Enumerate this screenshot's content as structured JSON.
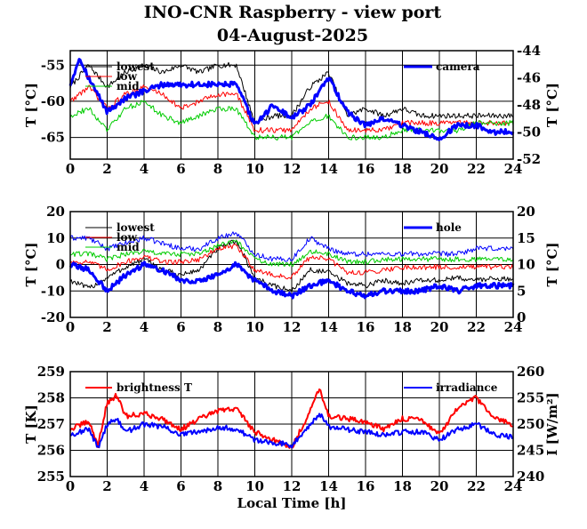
{
  "title": "INO-CNR Raspberry - view port",
  "subtitle": "04-August-2025",
  "xlabel": "Local Time [h]",
  "chart_data": [
    {
      "type": "line",
      "panel": "top",
      "x_ticks": [
        "0",
        "2",
        "4",
        "6",
        "8",
        "10",
        "12",
        "14",
        "16",
        "18",
        "20",
        "22",
        "24"
      ],
      "xlim": [
        0,
        24
      ],
      "left_axis": {
        "label": "T [°C]",
        "ylim": [
          -68,
          -53
        ],
        "ticks": [
          "-55",
          "-60",
          "-65"
        ]
      },
      "right_axis": {
        "label": "T [°C]",
        "ylim": [
          -52,
          -44
        ],
        "ticks": [
          "-44",
          "-46",
          "-48",
          "-50",
          "-52"
        ]
      },
      "legend": [
        "lowest",
        "low",
        "mid",
        "camera"
      ],
      "series": [
        {
          "name": "lowest",
          "axis": "left",
          "color": "#000000",
          "x": [
            0,
            1,
            2,
            3,
            4,
            5,
            6,
            7,
            8,
            9,
            10,
            11,
            12,
            13,
            14,
            15,
            16,
            17,
            18,
            19,
            20,
            21,
            22,
            23,
            24
          ],
          "y": [
            -58,
            -55,
            -58,
            -56,
            -55,
            -56,
            -55,
            -56,
            -55,
            -55,
            -63,
            -62,
            -62,
            -58,
            -56,
            -62,
            -61,
            -62,
            -61,
            -62,
            -62,
            -62,
            -62,
            -62,
            -62
          ]
        },
        {
          "name": "low",
          "axis": "left",
          "color": "#ff0000",
          "x": [
            0,
            1,
            2,
            3,
            4,
            5,
            6,
            7,
            8,
            9,
            10,
            11,
            12,
            13,
            14,
            15,
            16,
            17,
            18,
            19,
            20,
            21,
            22,
            23,
            24
          ],
          "y": [
            -60,
            -58,
            -61,
            -59,
            -58,
            -59,
            -61,
            -60,
            -59,
            -59,
            -64,
            -64,
            -64,
            -61,
            -60,
            -64,
            -64,
            -64,
            -63,
            -63,
            -63,
            -63,
            -63,
            -63,
            -63
          ]
        },
        {
          "name": "mid",
          "axis": "left",
          "color": "#00cc00",
          "x": [
            0,
            1,
            2,
            3,
            4,
            5,
            6,
            7,
            8,
            9,
            10,
            11,
            12,
            13,
            14,
            15,
            16,
            17,
            18,
            19,
            20,
            21,
            22,
            23,
            24
          ],
          "y": [
            -62,
            -61,
            -64,
            -61,
            -60,
            -62,
            -63,
            -62,
            -61,
            -61,
            -65,
            -65,
            -65,
            -63,
            -62,
            -65,
            -65,
            -65,
            -64,
            -64,
            -64,
            -64,
            -63,
            -63,
            -63
          ]
        },
        {
          "name": "camera",
          "axis": "right",
          "color": "#0000ff",
          "x": [
            0,
            0.5,
            1,
            2,
            3,
            4,
            5,
            6,
            7,
            8,
            9,
            10,
            11,
            12,
            13,
            14,
            15,
            16,
            17,
            18,
            19,
            20,
            21,
            22,
            23,
            24
          ],
          "y": [
            -46.5,
            -44.5,
            -46,
            -48.5,
            -47.5,
            -47,
            -46.5,
            -46.5,
            -46.5,
            -46.5,
            -46.5,
            -49.5,
            -48,
            -49,
            -48,
            -46,
            -48.5,
            -49.5,
            -49,
            -49.5,
            -50,
            -50.5,
            -49.5,
            -49.5,
            -50,
            -50
          ]
        }
      ]
    },
    {
      "type": "line",
      "panel": "middle",
      "x_ticks": [
        "0",
        "2",
        "4",
        "6",
        "8",
        "10",
        "12",
        "14",
        "16",
        "18",
        "20",
        "22",
        "24"
      ],
      "xlim": [
        0,
        24
      ],
      "left_axis": {
        "label": "T [°C]",
        "ylim": [
          -20,
          20
        ],
        "ticks": [
          "20",
          "10",
          "0",
          "-10",
          "-20"
        ]
      },
      "right_axis": {
        "label": "T [°C]",
        "ylim": [
          0,
          20
        ],
        "ticks": [
          "20",
          "15",
          "10",
          "5",
          "0"
        ]
      },
      "legend": [
        "lowest",
        "low",
        "mid",
        "hole"
      ],
      "series": [
        {
          "name": "lowest",
          "axis": "left",
          "color": "#000000",
          "x": [
            0,
            1,
            2,
            3,
            4,
            5,
            6,
            7,
            8,
            9,
            10,
            11,
            12,
            13,
            14,
            15,
            16,
            17,
            18,
            19,
            20,
            21,
            22,
            23,
            24
          ],
          "y": [
            -6,
            -9,
            -5,
            -1,
            2,
            -2,
            -4,
            -2,
            6,
            9,
            -5,
            -8,
            -10,
            -2,
            -3,
            -7,
            -8,
            -6,
            -7,
            -6,
            -6,
            -5,
            -6,
            -5,
            -6
          ]
        },
        {
          "name": "low",
          "axis": "left",
          "color": "#ff0000",
          "x": [
            0,
            1,
            2,
            3,
            4,
            5,
            6,
            7,
            8,
            9,
            10,
            11,
            12,
            13,
            14,
            15,
            16,
            17,
            18,
            19,
            20,
            21,
            22,
            23,
            24
          ],
          "y": [
            1,
            1,
            -2,
            1,
            3,
            1,
            1,
            2,
            6,
            7,
            -2,
            -4,
            -5,
            3,
            2,
            -3,
            -3,
            -2,
            -1,
            -1,
            -1,
            -1,
            -1,
            -1,
            -1
          ]
        },
        {
          "name": "mid",
          "axis": "left",
          "color": "#00cc00",
          "x": [
            0,
            1,
            2,
            3,
            4,
            5,
            6,
            7,
            8,
            9,
            10,
            11,
            12,
            13,
            14,
            15,
            16,
            17,
            18,
            19,
            20,
            21,
            22,
            23,
            24
          ],
          "y": [
            4,
            4,
            2,
            4,
            5,
            4,
            4,
            4,
            7,
            9,
            2,
            0,
            0,
            5,
            4,
            1,
            1,
            2,
            2,
            2,
            2,
            2,
            2,
            2,
            2
          ]
        },
        {
          "name": "hole",
          "axis": "right",
          "color": "#0000ff",
          "x": [
            0,
            1,
            2,
            3,
            4,
            5,
            6,
            7,
            8,
            9,
            10,
            11,
            12,
            13,
            14,
            15,
            16,
            17,
            18,
            19,
            20,
            21,
            22,
            23,
            24
          ],
          "y": [
            10,
            9,
            5,
            8,
            10,
            9,
            7,
            7,
            8,
            10,
            7,
            5,
            4,
            6,
            7,
            5,
            4,
            5,
            5,
            5,
            6,
            5,
            6,
            6,
            6
          ]
        },
        {
          "name": "hole-upper",
          "axis": "right",
          "color": "#0000ff",
          "width": 1,
          "x": [
            0,
            1,
            2,
            3,
            4,
            5,
            6,
            7,
            8,
            9,
            10,
            11,
            12,
            13,
            14,
            15,
            16,
            17,
            18,
            19,
            20,
            21,
            22,
            23,
            24
          ],
          "y": [
            15,
            15,
            13,
            14,
            15,
            14,
            13,
            13,
            15,
            16,
            12,
            11,
            11,
            15,
            13,
            12,
            12,
            12,
            12,
            12,
            12,
            12,
            13,
            13,
            13
          ]
        }
      ]
    },
    {
      "type": "line",
      "panel": "bottom",
      "x_ticks": [
        "0",
        "2",
        "4",
        "6",
        "8",
        "10",
        "12",
        "14",
        "16",
        "18",
        "20",
        "22",
        "24"
      ],
      "xlim": [
        0,
        24
      ],
      "left_axis": {
        "label": "T [K]",
        "ylim": [
          255,
          259
        ],
        "ticks": [
          "259",
          "258",
          "257",
          "256",
          "255"
        ]
      },
      "right_axis": {
        "label": "I [W/m²]",
        "ylim": [
          240,
          260
        ],
        "ticks": [
          "260",
          "255",
          "250",
          "245",
          "240"
        ]
      },
      "legend": [
        "brightness T",
        "irradiance"
      ],
      "series": [
        {
          "name": "brightness T",
          "axis": "left",
          "color": "#ff0000",
          "x": [
            0,
            1,
            1.5,
            2,
            2.5,
            3,
            4,
            5,
            6,
            7,
            8,
            9,
            10,
            11,
            12,
            13,
            13.5,
            14,
            15,
            16,
            17,
            18,
            19,
            20,
            21,
            22,
            23,
            24
          ],
          "y": [
            256.8,
            257.1,
            256.2,
            257.8,
            258.1,
            257.3,
            257.4,
            257.2,
            256.8,
            257.2,
            257.5,
            257.6,
            256.7,
            256.4,
            256.1,
            257.5,
            258.4,
            257.3,
            257.2,
            257.1,
            256.8,
            257.2,
            257.2,
            256.6,
            257.6,
            258.0,
            257.2,
            257.0
          ]
        },
        {
          "name": "irradiance",
          "axis": "right",
          "color": "#0000ff",
          "x": [
            0,
            1,
            1.5,
            2,
            2.5,
            3,
            4,
            5,
            6,
            7,
            8,
            9,
            10,
            11,
            12,
            13,
            13.5,
            14,
            15,
            16,
            17,
            18,
            19,
            20,
            21,
            22,
            23,
            24
          ],
          "y": [
            248,
            249,
            245.5,
            250,
            251,
            248.5,
            250,
            249.5,
            248,
            248.5,
            249.5,
            249,
            247,
            246.5,
            246,
            250,
            252,
            249.5,
            249,
            248.5,
            248,
            248.5,
            248.5,
            247,
            249,
            250,
            248,
            247.5
          ]
        }
      ]
    }
  ]
}
